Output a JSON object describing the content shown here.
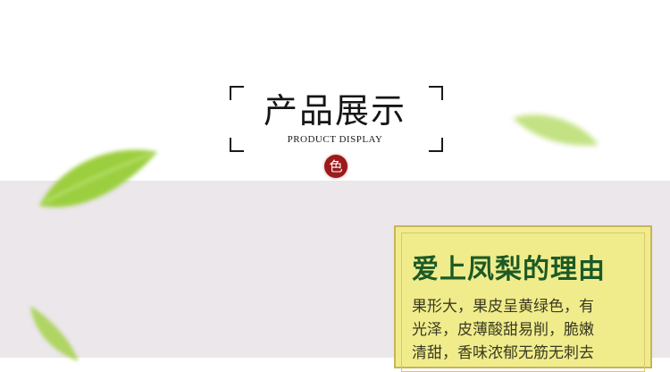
{
  "header": {
    "title_cn": "产品展示",
    "title_en": "PRODUCT DISPLAY",
    "seal_char": "色"
  },
  "card": {
    "title": "爱上凤梨的理由",
    "lines": [
      "果形大，果皮呈黄绿色，有",
      "光泽，皮薄酸甜易削，脆嫩",
      "清甜，香味浓郁无筋无刺去"
    ]
  },
  "colors": {
    "card_bg": "#f0ec8c",
    "card_border": "#c8b45a",
    "title_green": "#1c5a26",
    "seal_red": "#9b1a1a",
    "band_gray": "#ebe7eb"
  },
  "decor_icons": [
    "leaf-icon",
    "leaf-icon",
    "leaf-icon"
  ]
}
